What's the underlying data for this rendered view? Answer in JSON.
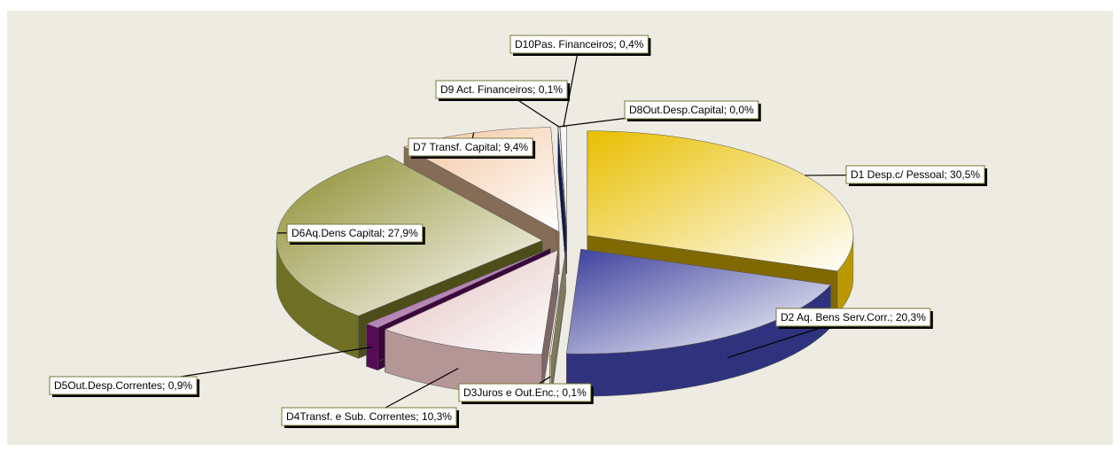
{
  "chart_data": {
    "type": "pie3d",
    "labels": [
      "D1 Desp.c/ Pessoal; 30,5%",
      "D2 Aq. Bens Serv.Corr.; 20,3%",
      "D3Juros e Out.Enc.; 0,1%",
      "D4Transf. e Sub. Correntes; 10,3%",
      "D5Out.Desp.Correntes; 0,9%",
      "D6Aq.Dens Capital; 27,9%",
      "D7 Transf. Capital; 9,4%",
      "D8Out.Desp.Capital; 0,0%",
      "D9 Act. Financeiros; 0,1%",
      "D10Pas. Financeiros; 0,4%"
    ],
    "values": [
      30.5,
      20.3,
      0.1,
      10.3,
      0.9,
      27.9,
      9.4,
      0.0,
      0.1,
      0.4
    ],
    "colors": [
      "#e8bf00",
      "#3b3f9c",
      "#e6e0a8",
      "#e2bcbc",
      "#6b0d6b",
      "#8c8c2e",
      "#f2c49c",
      "#1c2c8c",
      "#f4f4f4",
      "#f4f4f4"
    ]
  }
}
